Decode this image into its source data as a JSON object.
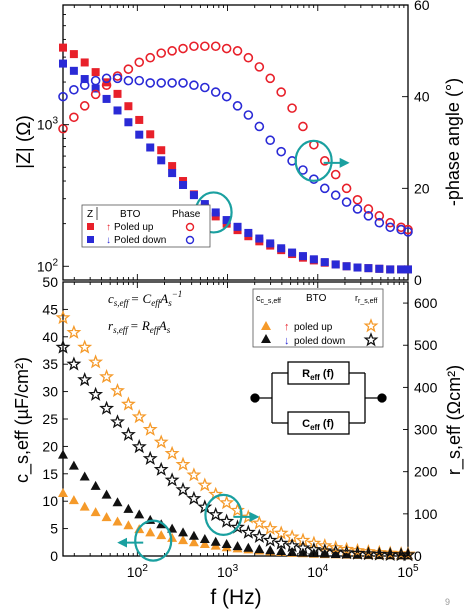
{
  "slide_number": "9",
  "chart_data": [
    {
      "type": "scatter",
      "panel": "top",
      "xlabel": "",
      "ylabel_left": "|Z| (Ω)",
      "ylabel_right": "-phase angle (°)",
      "x_scale": "log",
      "y_left_scale": "log",
      "xlim": [
        15,
        100000
      ],
      "ylim_left": [
        80,
        7000
      ],
      "ylim_right": [
        0,
        60
      ],
      "y_left_ticks": [
        "10^2",
        "10^3"
      ],
      "y_right_ticks": [
        "0",
        "20",
        "40",
        "60"
      ],
      "grid": false,
      "legend_position": "bottom-left",
      "legend": {
        "header": {
          "left": "Z",
          "middle": "BTO",
          "right": "Phase"
        },
        "entries": [
          {
            "arrow": "↑",
            "label": "Poled up",
            "color": "#e8202a"
          },
          {
            "arrow": "↓",
            "label": "Poled down",
            "color": "#2a2ad6"
          }
        ]
      },
      "x": [
        15,
        19.8,
        26.1,
        34.5,
        45.6,
        60.3,
        79.6,
        105,
        139,
        184,
        243,
        321,
        424,
        560,
        739,
        977,
        1290,
        1700,
        2250,
        2970,
        3930,
        5190,
        6850,
        9050,
        11950,
        15790,
        20860,
        27560,
        36400,
        48100,
        63500,
        83900,
        100000
      ],
      "series": [
        {
          "name": "|Z| Poled up",
          "axis": "left",
          "marker": "square-filled",
          "color": "#e8202a",
          "values": [
            3500,
            3150,
            2750,
            2350,
            1990,
            1650,
            1350,
            1080,
            855,
            660,
            510,
            400,
            322,
            262,
            225,
            200,
            180,
            163,
            150,
            140,
            130,
            122,
            115,
            110,
            106,
            103,
            100,
            98,
            97,
            96,
            95,
            95,
            95
          ]
        },
        {
          "name": "|Z| Poled down",
          "axis": "left",
          "marker": "square-filled",
          "color": "#2a2ad6",
          "values": [
            2700,
            2400,
            2100,
            1800,
            1520,
            1260,
            1040,
            850,
            690,
            560,
            455,
            375,
            318,
            275,
            240,
            212,
            190,
            172,
            157,
            145,
            134,
            125,
            118,
            112,
            107,
            103,
            100,
            98,
            97,
            96,
            95,
            95,
            95
          ]
        },
        {
          "name": "Phase Poled up",
          "axis": "right",
          "marker": "circle-open",
          "color": "#e8202a",
          "values": [
            33,
            35.5,
            38,
            40.5,
            42.5,
            44.5,
            46,
            47.5,
            48.5,
            49.5,
            50,
            50.5,
            51,
            51,
            51,
            50.5,
            50,
            48.5,
            46.5,
            44,
            41,
            37.5,
            33.5,
            29.5,
            26,
            23,
            20,
            17.5,
            15.5,
            14,
            12.5,
            11.5,
            11
          ]
        },
        {
          "name": "Phase Poled down",
          "axis": "right",
          "marker": "circle-open",
          "color": "#2a2ad6",
          "values": [
            40,
            41.5,
            42.5,
            43.5,
            44,
            44,
            43.5,
            43.5,
            43,
            43,
            43,
            43,
            42.5,
            42,
            41,
            40,
            38,
            36,
            33.5,
            30.5,
            28,
            26,
            24,
            22,
            20,
            18.5,
            17,
            15.5,
            14,
            12.5,
            11.5,
            11,
            10.5
          ]
        }
      ],
      "annotations": [
        {
          "type": "circle-arrow",
          "x": 700,
          "y_left": 240,
          "direction": "left",
          "color": "#1aa0a0"
        },
        {
          "type": "circle-arrow",
          "x": 9000,
          "y_right": 26,
          "direction": "right",
          "color": "#1aa0a0"
        }
      ]
    },
    {
      "type": "scatter",
      "panel": "bottom",
      "xlabel": "f (Hz)",
      "ylabel_left": "c_s,eff (µF/cm²)",
      "ylabel_right": "r_s,eff (Ωcm²)",
      "x_scale": "log",
      "xlim": [
        15,
        100000
      ],
      "ylim_left": [
        0,
        50
      ],
      "ylim_right": [
        0,
        650
      ],
      "x_ticks": [
        "10^2",
        "10^3",
        "10^4",
        "10^5"
      ],
      "y_left_ticks": [
        "0",
        "5",
        "10",
        "15",
        "20",
        "25",
        "30",
        "35",
        "40",
        "45",
        "50"
      ],
      "y_right_ticks": [
        "0",
        "100",
        "200",
        "300",
        "400",
        "500",
        "600"
      ],
      "grid": false,
      "legend_position": "right-center",
      "legend": {
        "header": {
          "left": "c_s,eff",
          "middle": "BTO",
          "right": "r_s,eff"
        },
        "entries": [
          {
            "arrow": "↑",
            "label": "poled up",
            "color_marker": "#f59a2a"
          },
          {
            "arrow": "↓",
            "label": "poled down",
            "color_marker": "#111111"
          }
        ]
      },
      "equations": [
        {
          "lhs": "c",
          "lhs_sub": "s,eff",
          "rhs": "= C",
          "rhs_sub": "eff",
          "tail": "A",
          "tail_sub": "s",
          "tail_sup": "−1"
        },
        {
          "lhs": "r",
          "lhs_sub": "s,eff",
          "rhs": "= R",
          "rhs_sub": "eff",
          "tail": "A",
          "tail_sub": "s",
          "tail_sup": ""
        }
      ],
      "circuit": {
        "top": {
          "main": "R",
          "sub": "eff",
          "tail": " (f)"
        },
        "bottom": {
          "main": "C",
          "sub": "eff",
          "tail": " (f)"
        }
      },
      "x": [
        15,
        19.8,
        26.1,
        34.5,
        45.6,
        60.3,
        79.6,
        105,
        139,
        184,
        243,
        321,
        424,
        560,
        739,
        977,
        1290,
        1700,
        2250,
        2970,
        3930,
        5190,
        6850,
        9050,
        11950,
        15790,
        20860,
        27560,
        36400,
        48100,
        63500,
        83900,
        100000
      ],
      "series": [
        {
          "name": "c_s,eff poled up",
          "axis": "left",
          "marker": "triangle-filled",
          "color": "#f59a2a",
          "values": [
            11.5,
            10.2,
            9,
            8,
            7.1,
            6.3,
            5.6,
            4.9,
            4.3,
            3.8,
            3.3,
            2.9,
            2.5,
            2.2,
            1.9,
            1.6,
            1.4,
            1.2,
            1,
            0.85,
            0.72,
            0.6,
            0.5,
            0.42,
            0.35,
            0.29,
            0.24,
            0.2,
            0.17,
            0.14,
            0.12,
            0.1,
            0.09
          ]
        },
        {
          "name": "c_s,eff poled down",
          "axis": "left",
          "marker": "triangle-filled",
          "color": "#111111",
          "values": [
            18.5,
            16.5,
            14.5,
            12.8,
            11.2,
            9.8,
            8.6,
            7.6,
            6.6,
            5.8,
            5,
            4.3,
            3.7,
            3.1,
            2.6,
            2.2,
            1.8,
            1.5,
            1.25,
            1.05,
            0.88,
            0.74,
            0.62,
            0.52,
            0.44,
            0.37,
            0.31,
            0.26,
            0.22,
            0.19,
            0.16,
            0.14,
            0.13
          ]
        },
        {
          "name": "r_s,eff poled up",
          "axis": "right",
          "marker": "star-open",
          "color": "#f59a2a",
          "values": [
            565,
            530,
            495,
            460,
            425,
            392,
            360,
            330,
            300,
            270,
            243,
            217,
            192,
            168,
            146,
            126,
            108,
            92,
            78,
            65,
            54,
            45,
            37,
            30,
            24,
            19.5,
            15.5,
            12.5,
            10,
            8,
            6.5,
            5.2,
            4.5
          ]
        },
        {
          "name": "r_s,eff poled down",
          "axis": "right",
          "marker": "star-open",
          "color": "#111111",
          "values": [
            495,
            455,
            418,
            383,
            350,
            318,
            288,
            259,
            231,
            205,
            180,
            157,
            136,
            116,
            98,
            82,
            68,
            56,
            46,
            37,
            30,
            24,
            19,
            15,
            12,
            9.5,
            7.5,
            6,
            4.8,
            3.9,
            3.2,
            2.7,
            2.4
          ]
        }
      ],
      "annotations": [
        {
          "type": "circle-arrow",
          "x": 150,
          "y_left": 2.8,
          "direction": "left",
          "color": "#1aa0a0"
        },
        {
          "type": "circle-arrow",
          "x": 900,
          "y_left": 7.5,
          "direction": "right",
          "color": "#1aa0a0"
        }
      ]
    }
  ]
}
